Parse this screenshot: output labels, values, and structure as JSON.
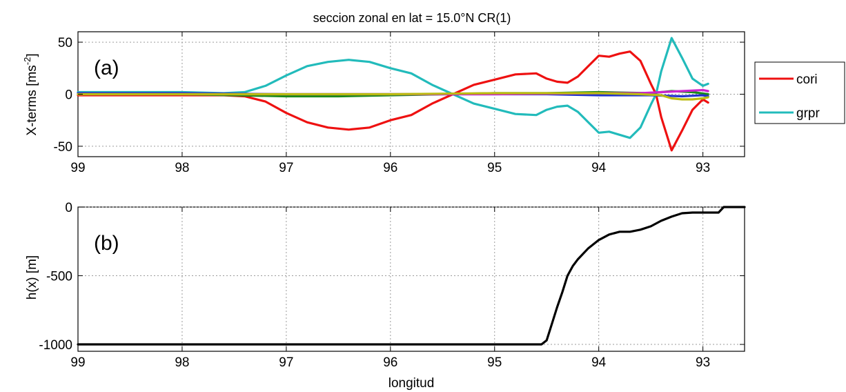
{
  "title": "seccion zonal en lat = 15.0°N CR(1)",
  "chart_data": [
    {
      "type": "line",
      "panel_label": "(a)",
      "xlabel": "",
      "ylabel": "X-terms [ms",
      "ylabel_sup": "-2",
      "ylabel_end": "]",
      "xlim": [
        99,
        92.6
      ],
      "ylim": [
        -60,
        60
      ],
      "xticks": [
        99,
        98,
        97,
        96,
        95,
        94,
        93
      ],
      "xtick_labels": [
        "99",
        "98",
        "97",
        "96",
        "95",
        "94",
        "93"
      ],
      "yticks": [
        -50,
        0,
        50
      ],
      "ytick_labels": [
        "-50",
        "0",
        "50"
      ],
      "grid": true,
      "legend_position": "outside-right",
      "series": [
        {
          "name": "cori",
          "color": "#ee1111",
          "in_legend": true,
          "x": [
            99,
            98.5,
            98,
            97.6,
            97.4,
            97.2,
            97.0,
            96.8,
            96.6,
            96.4,
            96.2,
            96.0,
            95.8,
            95.6,
            95.4,
            95.2,
            95.0,
            94.8,
            94.6,
            94.5,
            94.4,
            94.3,
            94.2,
            94.1,
            94.0,
            93.9,
            93.8,
            93.7,
            93.6,
            93.5,
            93.45,
            93.4,
            93.3,
            93.2,
            93.1,
            93.0,
            92.95
          ],
          "y": [
            -1,
            -1,
            -1,
            -1,
            -2,
            -7,
            -18,
            -27,
            -32,
            -34,
            -32,
            -25,
            -20,
            -9,
            0,
            9,
            14,
            19,
            20,
            15,
            12,
            11,
            17,
            27,
            37,
            36,
            39,
            41,
            32,
            10,
            0,
            -22,
            -54,
            -35,
            -15,
            -5,
            -8
          ]
        },
        {
          "name": "grpr",
          "color": "#22bbbb",
          "in_legend": true,
          "x": [
            99,
            98.5,
            98,
            97.6,
            97.4,
            97.2,
            97.0,
            96.8,
            96.6,
            96.4,
            96.2,
            96.0,
            95.8,
            95.6,
            95.4,
            95.2,
            95.0,
            94.8,
            94.6,
            94.5,
            94.4,
            94.3,
            94.2,
            94.1,
            94.0,
            93.9,
            93.8,
            93.7,
            93.6,
            93.5,
            93.45,
            93.4,
            93.3,
            93.2,
            93.1,
            93.0,
            92.95
          ],
          "y": [
            2,
            2,
            2,
            1,
            2,
            8,
            18,
            27,
            31,
            33,
            31,
            25,
            20,
            9,
            0,
            -9,
            -14,
            -19,
            -20,
            -15,
            -12,
            -11,
            -17,
            -27,
            -37,
            -36,
            -39,
            -42,
            -32,
            -10,
            0,
            22,
            54,
            35,
            15,
            8,
            10
          ]
        },
        {
          "name": "",
          "color": "#1a8a1a",
          "in_legend": false,
          "x": [
            99,
            98,
            97.5,
            97,
            96.5,
            96,
            95.5,
            95,
            94.5,
            94,
            93.5,
            93.3,
            93.1,
            92.95
          ],
          "y": [
            0,
            0,
            -1,
            -2,
            -2,
            -1,
            0,
            1,
            1,
            2,
            1,
            3,
            2,
            0
          ]
        },
        {
          "name": "",
          "color": "#2233cc",
          "in_legend": false,
          "x": [
            99,
            98,
            97,
            96,
            95,
            94.5,
            94,
            93.5,
            93.2,
            93.0,
            92.95
          ],
          "y": [
            1,
            1,
            0,
            0,
            0,
            0,
            -1,
            -1,
            -2,
            -1,
            -2
          ]
        },
        {
          "name": "",
          "color": "#cc22cc",
          "in_legend": false,
          "x": [
            99,
            98,
            97,
            96,
            95,
            94,
            93.6,
            93.4,
            93.2,
            93.0,
            92.95
          ],
          "y": [
            0,
            0,
            0,
            0,
            0,
            1,
            1,
            2,
            3,
            4,
            3
          ]
        },
        {
          "name": "",
          "color": "#bbbb11",
          "in_legend": false,
          "x": [
            99,
            98,
            97,
            96,
            95,
            94,
            93.6,
            93.4,
            93.3,
            93.2,
            93.1,
            93.0,
            92.95
          ],
          "y": [
            0,
            0,
            0,
            0,
            1,
            1,
            0,
            -1,
            -4,
            -5,
            -5,
            -4,
            -3
          ]
        }
      ]
    },
    {
      "type": "line",
      "panel_label": "(b)",
      "xlabel": "longitud",
      "ylabel": "h(x) [m]",
      "xlim": [
        99,
        92.6
      ],
      "ylim": [
        -1050,
        0
      ],
      "xticks": [
        99,
        98,
        97,
        96,
        95,
        94,
        93
      ],
      "xtick_labels": [
        "99",
        "98",
        "97",
        "96",
        "95",
        "94",
        "93"
      ],
      "yticks": [
        -1000,
        -500,
        0
      ],
      "ytick_labels": [
        "-1000",
        "-500",
        "0"
      ],
      "grid": true,
      "series": [
        {
          "name": "",
          "color": "#000000",
          "x": [
            99,
            95.0,
            94.55,
            94.5,
            94.45,
            94.4,
            94.35,
            94.3,
            94.25,
            94.2,
            94.1,
            94.0,
            93.9,
            93.8,
            93.7,
            93.6,
            93.5,
            93.4,
            93.3,
            93.2,
            93.1,
            93.0,
            92.9,
            92.85,
            92.8,
            92.6
          ],
          "y": [
            -1000,
            -1000,
            -1000,
            -970,
            -850,
            -730,
            -620,
            -500,
            -430,
            -380,
            -300,
            -240,
            -200,
            -180,
            -180,
            -165,
            -140,
            -100,
            -70,
            -45,
            -40,
            -40,
            -40,
            -40,
            0,
            0
          ]
        }
      ]
    }
  ]
}
